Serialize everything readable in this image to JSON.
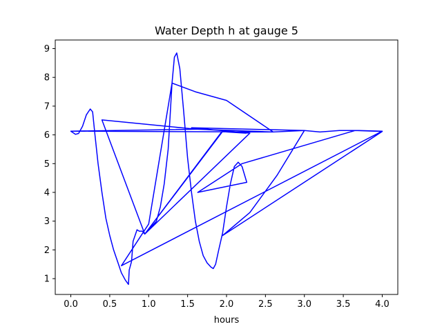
{
  "chart_data": {
    "type": "line",
    "title": "Water Depth h at gauge 5",
    "xlabel": "hours",
    "ylabel": "",
    "xlim": [
      -0.2,
      4.2
    ],
    "ylim": [
      0.45,
      9.3
    ],
    "xticks": [
      0.0,
      0.5,
      1.0,
      1.5,
      2.0,
      2.5,
      3.0,
      3.5,
      4.0
    ],
    "xtick_labels": [
      "0.0",
      "0.5",
      "1.0",
      "1.5",
      "2.0",
      "2.5",
      "3.0",
      "3.5",
      "4.0"
    ],
    "yticks": [
      1,
      2,
      3,
      4,
      5,
      6,
      7,
      8,
      9
    ],
    "ytick_labels": [
      "1",
      "2",
      "3",
      "4",
      "5",
      "6",
      "7",
      "8",
      "9"
    ],
    "grid": false,
    "legend": "none",
    "color": "#0000ff",
    "series": [
      {
        "x": [
          0.0,
          0.06,
          0.1,
          0.15,
          0.2,
          0.25,
          0.28,
          0.31,
          0.35,
          0.4,
          0.45,
          0.5,
          0.55,
          0.6,
          0.65,
          0.7,
          0.74,
          0.75,
          0.78,
          0.8,
          0.85,
          0.88,
          0.92,
          0.95,
          0.4,
          1.6,
          2.6,
          3.0,
          3.2,
          3.45,
          3.7,
          4.0,
          0.65,
          1.0,
          1.3,
          1.4,
          1.6,
          2.0,
          2.6,
          0.0,
          1.65,
          1.95,
          0.95,
          1.1,
          1.15,
          1.2,
          1.25,
          1.3,
          1.33,
          1.36,
          1.4,
          1.45,
          1.5,
          1.55,
          1.6,
          1.65,
          1.7,
          1.75,
          1.8,
          1.83,
          1.86,
          1.9,
          1.95,
          2.0,
          2.05,
          2.1,
          2.15,
          2.2,
          2.26,
          1.63,
          2.2,
          3.65,
          4.0,
          1.95,
          2.3,
          2.65,
          3.0,
          1.55,
          2.3,
          0.95,
          1.95,
          2.25,
          2.0,
          2.25
        ],
        "y": [
          6.13,
          6.02,
          6.05,
          6.3,
          6.7,
          6.9,
          6.8,
          6.0,
          5.0,
          4.0,
          3.1,
          2.5,
          2.0,
          1.6,
          1.2,
          0.95,
          0.8,
          1.3,
          1.6,
          2.3,
          2.7,
          2.65,
          2.65,
          2.55,
          6.52,
          6.2,
          6.1,
          6.15,
          6.1,
          6.15,
          6.15,
          6.13,
          1.45,
          2.9,
          7.8,
          7.7,
          7.5,
          7.2,
          6.1,
          6.13,
          6.2,
          6.15,
          2.55,
          3.0,
          3.5,
          4.3,
          5.5,
          7.8,
          8.7,
          8.85,
          8.3,
          6.8,
          5.2,
          4.0,
          3.0,
          2.3,
          1.8,
          1.55,
          1.4,
          1.35,
          1.5,
          2.0,
          2.6,
          3.5,
          4.3,
          4.9,
          5.05,
          4.9,
          4.35,
          4.0,
          5.0,
          6.15,
          6.12,
          2.5,
          3.3,
          4.6,
          6.15,
          6.25,
          6.06,
          2.55,
          6.12,
          6.06,
          6.1,
          6.06
        ]
      }
    ]
  }
}
